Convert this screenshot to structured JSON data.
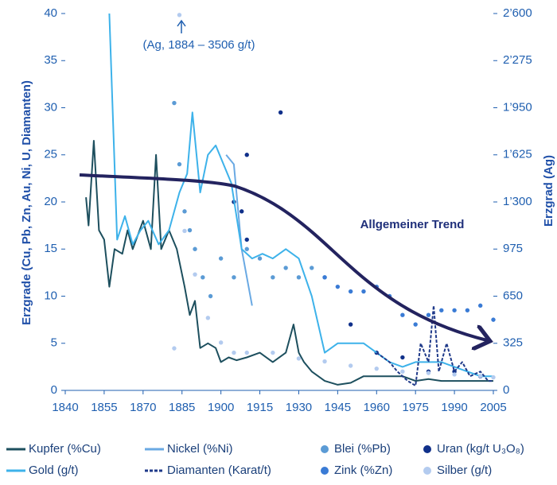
{
  "chart_data": {
    "type": "line",
    "ylabel": "Erzgrade (Cu, Pb, Zn, Au, Ni, U, Diamanten)",
    "y2label": "Erzgrad (Ag)",
    "annotations": [
      "(Ag, 1884 – 3506 g/t)",
      "Allgemeiner Trend"
    ],
    "xlim": [
      1840,
      2005
    ],
    "xticks": [
      1840,
      1855,
      1870,
      1885,
      1900,
      1915,
      1930,
      1945,
      1960,
      1975,
      1990,
      2005
    ],
    "ylim": [
      0,
      40
    ],
    "yticks": [
      0,
      5,
      10,
      15,
      20,
      25,
      30,
      35,
      40
    ],
    "y2lim": [
      0,
      2600
    ],
    "y2ticks": [
      0,
      325,
      650,
      975,
      {
        "value": 1300,
        "label": "1’300"
      },
      {
        "value": 1625,
        "label": "1’625"
      },
      {
        "value": 1950,
        "label": "1’950"
      },
      {
        "value": 2275,
        "label": "2’275"
      },
      {
        "value": 2600,
        "label": "2’600"
      }
    ],
    "series": [
      {
        "name": "Kupfer (%Cu)",
        "color": "#1d4f5e",
        "mark": "line",
        "x": [
          1848,
          1849,
          1851,
          1853,
          1855,
          1857,
          1859,
          1862,
          1864,
          1866,
          1870,
          1873,
          1875,
          1877,
          1880,
          1883,
          1886,
          1888,
          1890,
          1892,
          1895,
          1898,
          1900,
          1903,
          1906,
          1910,
          1915,
          1920,
          1925,
          1928,
          1930,
          1932,
          1935,
          1940,
          1945,
          1950,
          1955,
          1960,
          1965,
          1970,
          1975,
          1980,
          1985,
          1990,
          1995,
          2000,
          2005
        ],
        "values": [
          20.5,
          17.5,
          26.5,
          17,
          16,
          11,
          15,
          14.5,
          17,
          15,
          18,
          15,
          25,
          15,
          17,
          15,
          11,
          8,
          9.5,
          4.5,
          5,
          4.5,
          3,
          3.5,
          3.2,
          3.5,
          4,
          3,
          4,
          7,
          4,
          3,
          2,
          1,
          0.6,
          0.8,
          1.5,
          1.5,
          1.5,
          1.5,
          1,
          1.2,
          1,
          1,
          1,
          1,
          1
        ]
      },
      {
        "name": "Nickel (%Ni)",
        "color": "#6aa9e3",
        "mark": "line",
        "x": [
          1902,
          1905,
          1908,
          1912
        ],
        "values": [
          25,
          24,
          15,
          9
        ]
      },
      {
        "name": "Blei (%Pb)",
        "color": "#5b9bd5",
        "mark": "point",
        "x": [
          1882,
          1884,
          1886,
          1888,
          1890,
          1893,
          1896,
          1900,
          1905,
          1910,
          1915,
          1920,
          1925,
          1930,
          1935,
          1940
        ],
        "values": [
          30.5,
          24,
          19,
          17,
          15,
          12,
          10,
          14,
          12,
          15,
          14,
          12,
          13,
          12,
          13,
          12
        ]
      },
      {
        "name": "Uran (kg/t U₃O₈)",
        "color": "#10308a",
        "mark": "point",
        "x": [
          1905,
          1908,
          1910,
          1910,
          1923,
          1950,
          1960,
          1970,
          1980,
          1990,
          2000
        ],
        "values": [
          20,
          19,
          25,
          16,
          29.5,
          7,
          4,
          3.5,
          2,
          2,
          1.5
        ]
      },
      {
        "name": "Gold (g/t)",
        "color": "#3db2ea",
        "mark": "line",
        "x": [
          1857,
          1860,
          1863,
          1866,
          1869,
          1872,
          1876,
          1880,
          1884,
          1887,
          1889,
          1892,
          1895,
          1898,
          1901,
          1904,
          1908,
          1912,
          1916,
          1920,
          1925,
          1930,
          1935,
          1940,
          1945,
          1950,
          1955,
          1960,
          1965,
          1970,
          1975,
          1980,
          1985,
          1990,
          1995,
          2000,
          2005
        ],
        "values": [
          40,
          16,
          18.5,
          15.5,
          17,
          18,
          15.5,
          17,
          21,
          23,
          29.5,
          21,
          25,
          26,
          24,
          22,
          15,
          14,
          14.5,
          14,
          15,
          14,
          10,
          4,
          5,
          5,
          5,
          4,
          3,
          2.5,
          3,
          3,
          3,
          2.5,
          2,
          1.5,
          1.5
        ]
      },
      {
        "name": "Diamanten (Karat/t)",
        "color": "#1f3a8a",
        "mark": "dashed",
        "x": [
          1960,
          1965,
          1968,
          1972,
          1975,
          1977,
          1980,
          1982,
          1984,
          1987,
          1990,
          1993,
          1996,
          2000,
          2003,
          2005
        ],
        "values": [
          4,
          3,
          2,
          1,
          0.5,
          5,
          3,
          9,
          2,
          5,
          2,
          3,
          1.5,
          2,
          1,
          1
        ]
      },
      {
        "name": "Zink (%Zn)",
        "color": "#3a7bd5",
        "mark": "point",
        "x": [
          1940,
          1945,
          1950,
          1955,
          1960,
          1965,
          1970,
          1975,
          1980,
          1985,
          1990,
          1995,
          2000,
          2005
        ],
        "values": [
          12,
          11,
          10.5,
          10.5,
          11,
          10,
          8,
          7,
          8,
          8.5,
          8.5,
          8.5,
          9,
          7.5
        ]
      },
      {
        "name": "Silber (g/t)",
        "color": "#b3cbef",
        "mark": "point",
        "axis": "y2",
        "x": [
          1882,
          1884,
          1886,
          1890,
          1895,
          1900,
          1905,
          1910,
          1920,
          1930,
          1940,
          1950,
          1960,
          1970,
          1980,
          1990,
          2000,
          2005
        ],
        "values": [
          290,
          2590,
          1100,
          800,
          500,
          330,
          260,
          260,
          260,
          220,
          200,
          170,
          150,
          130,
          120,
          110,
          100,
          90
        ]
      }
    ]
  }
}
